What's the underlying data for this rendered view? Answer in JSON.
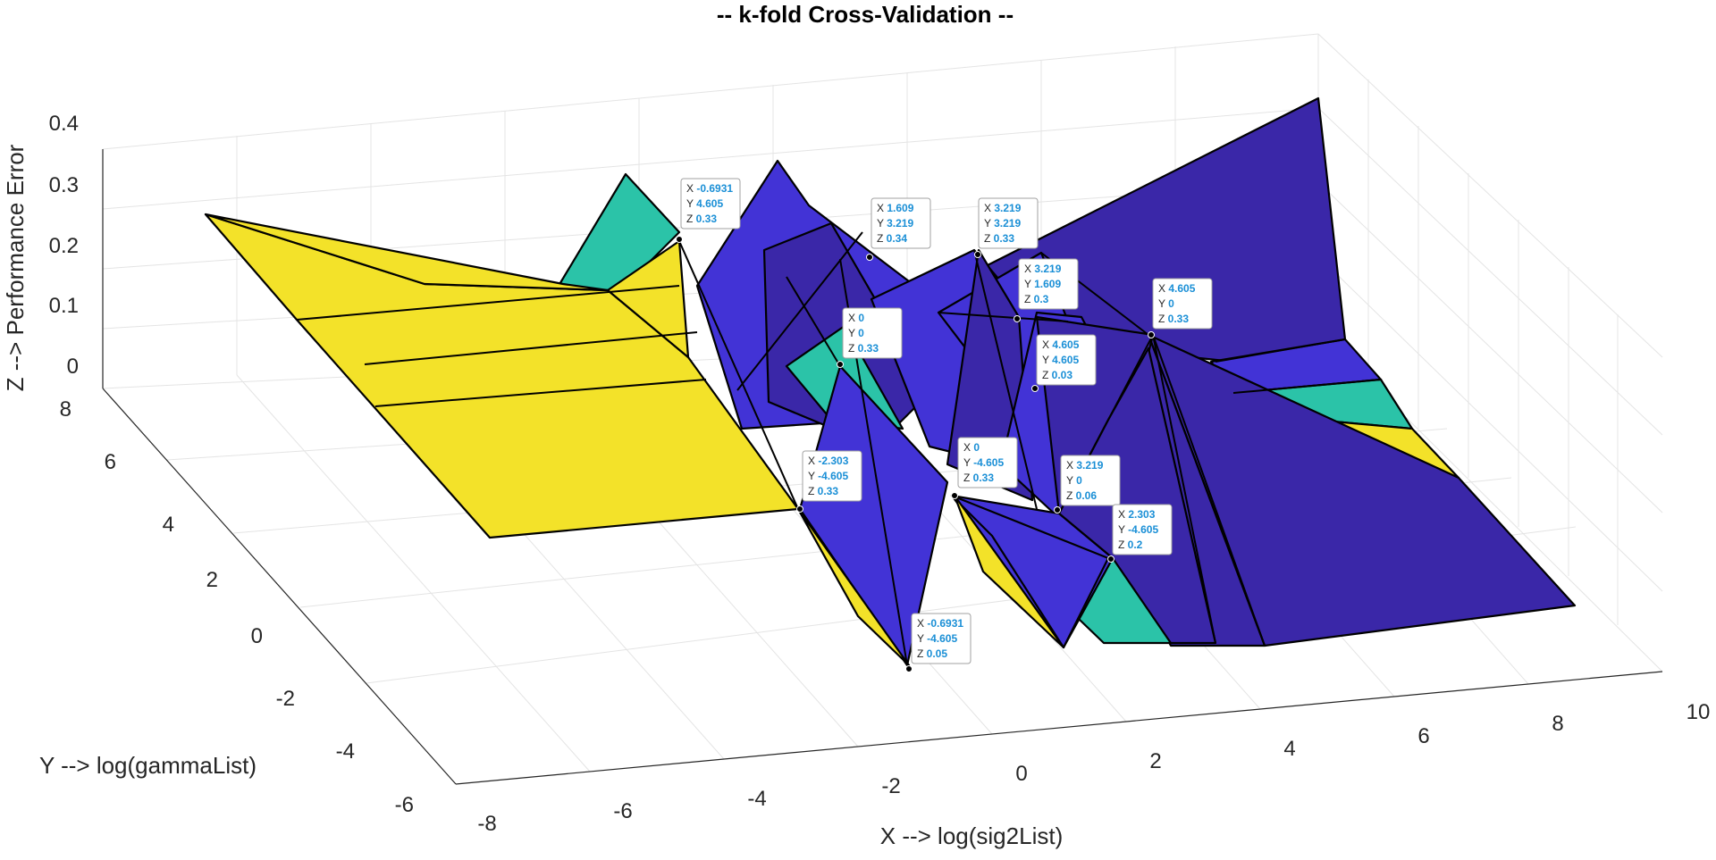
{
  "chart_data": {
    "type": "surface",
    "title": "-- k-fold Cross-Validation --",
    "xlabel": "X --> log(sig2List)",
    "ylabel": "Y --> log(gammaList)",
    "zlabel": "Z --> Performance Error",
    "xlim": [
      -8,
      10
    ],
    "ylim": [
      -6,
      8
    ],
    "zlim": [
      0,
      0.4
    ],
    "xticks": [
      "-8",
      "-6",
      "-4",
      "-2",
      "0",
      "2",
      "4",
      "6",
      "8",
      "10"
    ],
    "yticks": [
      "-6",
      "-4",
      "-2",
      "0",
      "2",
      "4",
      "6",
      "8"
    ],
    "zticks": [
      "0",
      "0.1",
      "0.2",
      "0.3",
      "0.4"
    ],
    "grid": true,
    "colors": {
      "high": "#f3e229",
      "mid": "#2bc3a8",
      "low": "#4233d6",
      "lowest": "#3a27a8"
    },
    "datatips": [
      {
        "x": "-0.6931",
        "y": "4.605",
        "z": "0.33"
      },
      {
        "x": "1.609",
        "y": "3.219",
        "z": "0.34"
      },
      {
        "x": "3.219",
        "y": "3.219",
        "z": "0.33"
      },
      {
        "x": "3.219",
        "y": "1.609",
        "z": "0.3"
      },
      {
        "x": "0",
        "y": "0",
        "z": "0.33"
      },
      {
        "x": "4.605",
        "y": "0",
        "z": "0.33"
      },
      {
        "x": "4.605",
        "y": "4.605",
        "z": "0.03"
      },
      {
        "x": "-2.303",
        "y": "-4.605",
        "z": "0.33"
      },
      {
        "x": "0",
        "y": "-4.605",
        "z": "0.33"
      },
      {
        "x": "3.219",
        "y": "0",
        "z": "0.06"
      },
      {
        "x": "2.303",
        "y": "-4.605",
        "z": "0.2"
      },
      {
        "x": "-0.6931",
        "y": "-4.605",
        "z": "0.05"
      }
    ]
  }
}
